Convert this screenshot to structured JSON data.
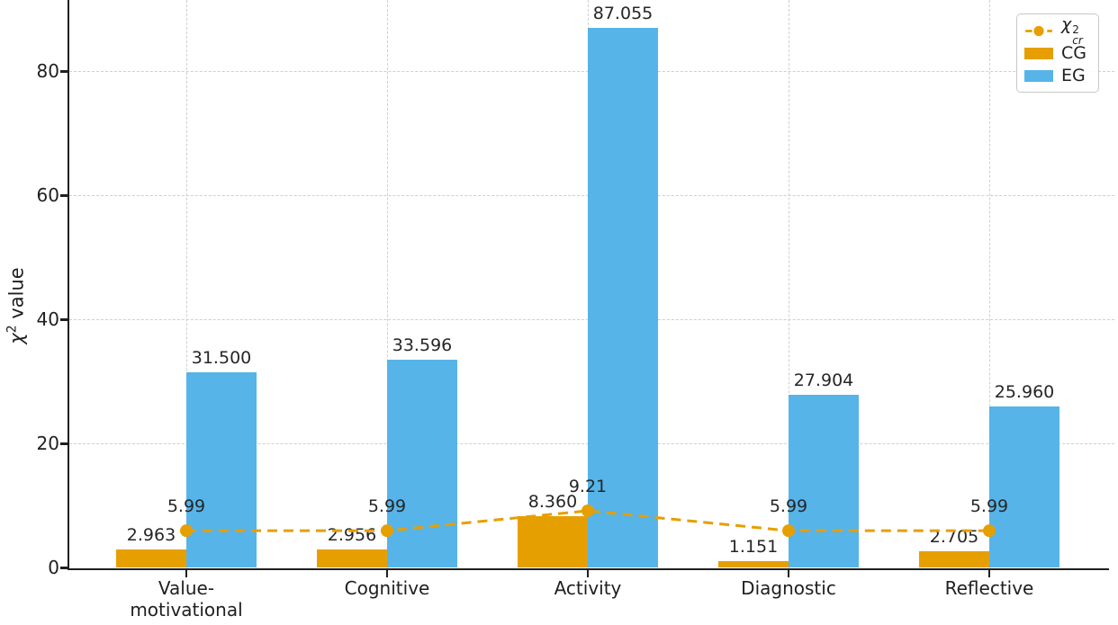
{
  "chart_data": {
    "type": "bar",
    "title": "",
    "categories": [
      {
        "lines": [
          "Value-",
          "motivational"
        ]
      },
      {
        "lines": [
          "Cognitive"
        ]
      },
      {
        "lines": [
          "Activity"
        ]
      },
      {
        "lines": [
          "Diagnostic"
        ]
      },
      {
        "lines": [
          "Reflective"
        ]
      }
    ],
    "series": [
      {
        "name": "CG",
        "color": "#E69F00",
        "values": [
          2.963,
          2.956,
          8.36,
          1.151,
          2.705
        ],
        "labels": [
          "2.963",
          "2.956",
          "8.360",
          "1.151",
          "2.705"
        ]
      },
      {
        "name": "EG",
        "color": "#56B4E9",
        "values": [
          31.5,
          33.596,
          87.055,
          27.904,
          25.96
        ],
        "labels": [
          "31.500",
          "33.596",
          "87.055",
          "27.904",
          "25.960"
        ]
      }
    ],
    "line_series": {
      "symbol": "χ",
      "sup": "2",
      "sub": "cr",
      "color": "#E69F00",
      "style": "dashed",
      "marker": "circle",
      "values": [
        5.99,
        5.99,
        9.21,
        5.99,
        5.99
      ],
      "labels": [
        "5.99",
        "5.99",
        "9.21",
        "5.99",
        "5.99"
      ]
    },
    "ylabel": {
      "symbol": "χ",
      "sup": "2",
      "word": "value"
    },
    "yticks": [
      "0",
      "20",
      "40",
      "60",
      "80"
    ],
    "ylim": [
      0,
      91.6
    ],
    "grid": "dashed horizontal and vertical",
    "legend_position": "upper right"
  }
}
